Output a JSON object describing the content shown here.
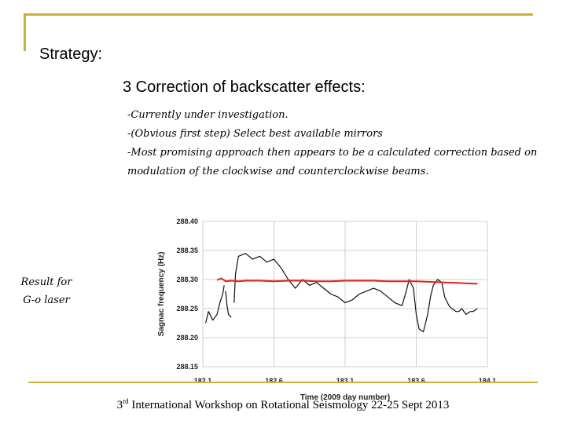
{
  "slide": {
    "heading": "Strategy:",
    "subheading": "3   Correction of backscatter effects:",
    "bullets": [
      "-Currently under investigation.",
      "-(Obvious first step) Select best available mirrors",
      "-Most promising approach then appears to be a calculated correction based on",
      "modulation of the clockwise and counterclockwise beams."
    ],
    "side_label_lines": [
      "Result for",
      "G-o laser"
    ],
    "footer_prefix": "3",
    "footer_sup": "rd",
    "footer_text": " International Workshop on Rotational Seismology 22-25 Sept 2013"
  },
  "colors": {
    "frame": "#c9b03a",
    "corrected": "#e02020",
    "raw": "#111111",
    "grid": "#cfcfcf"
  },
  "chart_data": {
    "type": "line",
    "xlabel": "Time (2009 day number)",
    "ylabel": "Sagnac frequency (Hz)",
    "xlim": [
      182.1,
      184.1
    ],
    "ylim": [
      288.15,
      288.4
    ],
    "x_tick_labels": [
      "182.1",
      "182.6",
      "183.1",
      "183.6",
      "184.1"
    ],
    "x_ticks": [
      182.1,
      182.6,
      183.1,
      183.6,
      184.1
    ],
    "y_tick_labels": [
      "288.40",
      "288.35",
      "288.30",
      "288.25",
      "288.20",
      "288.15"
    ],
    "y_ticks": [
      288.4,
      288.35,
      288.3,
      288.25,
      288.2,
      288.15
    ],
    "grid": true,
    "series": [
      {
        "color": "#111111",
        "segments": [
          {
            "x": [
              182.12,
              182.14,
              182.17,
              182.2,
              182.22,
              182.24,
              182.25
            ],
            "y": [
              288.225,
              288.245,
              288.23,
              288.24,
              288.26,
              288.275,
              288.29
            ]
          },
          {
            "x": [
              182.26,
              182.27,
              182.28,
              182.3
            ],
            "y": [
              288.28,
              288.255,
              288.24,
              288.235
            ]
          },
          {
            "x": [
              182.32,
              182.33,
              182.35,
              182.4,
              182.45,
              182.5,
              182.55,
              182.6,
              182.65,
              182.7,
              182.75,
              182.8,
              182.85,
              182.9,
              182.95,
              183.0,
              183.05,
              183.1,
              183.15,
              183.2,
              183.25,
              183.3,
              183.35,
              183.4,
              183.45,
              183.5,
              183.53,
              183.55,
              183.58,
              183.6,
              183.62,
              183.65,
              183.68,
              183.7,
              183.72,
              183.75,
              183.78,
              183.8,
              183.83,
              183.85,
              183.88,
              183.9,
              183.92,
              183.95,
              183.98,
              184.0,
              184.03
            ],
            "y": [
              288.26,
              288.31,
              288.34,
              288.345,
              288.335,
              288.34,
              288.33,
              288.335,
              288.32,
              288.3,
              288.285,
              288.3,
              288.29,
              288.295,
              288.285,
              288.275,
              288.27,
              288.26,
              288.265,
              288.275,
              288.28,
              288.285,
              288.28,
              288.27,
              288.26,
              288.255,
              288.28,
              288.3,
              288.285,
              288.24,
              288.215,
              288.21,
              288.24,
              288.27,
              288.29,
              288.3,
              288.295,
              288.27,
              288.255,
              288.25,
              288.245,
              288.245,
              288.25,
              288.24,
              288.245,
              288.245,
              288.25
            ]
          }
        ]
      },
      {
        "color": "#e02020",
        "segments": [
          {
            "x": [
              182.2,
              182.23,
              182.26,
              182.3,
              182.35,
              182.4,
              182.5,
              182.6,
              182.7,
              182.8,
              182.9,
              183.0,
              183.1,
              183.2,
              183.3,
              183.4,
              183.5,
              183.6,
              183.7,
              183.8,
              183.9,
              184.0,
              184.03
            ],
            "y": [
              288.299,
              288.302,
              288.297,
              288.298,
              288.297,
              288.298,
              288.298,
              288.297,
              288.298,
              288.298,
              288.297,
              288.297,
              288.298,
              288.298,
              288.298,
              288.297,
              288.297,
              288.297,
              288.296,
              288.295,
              288.294,
              288.293,
              288.293
            ]
          }
        ]
      }
    ]
  }
}
